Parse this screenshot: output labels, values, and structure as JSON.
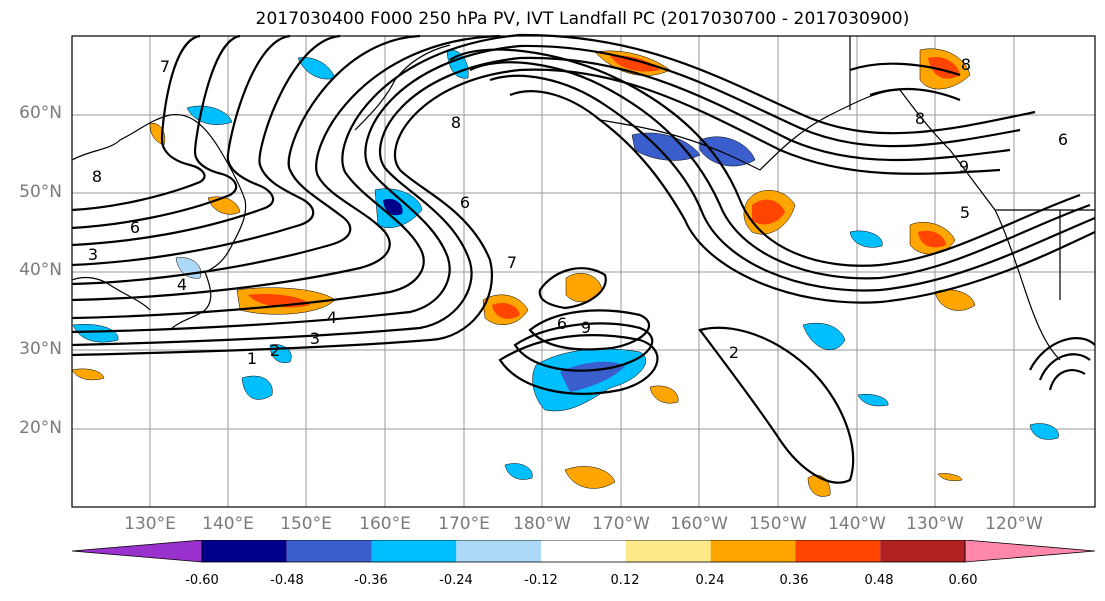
{
  "title": "2017030400 F000 250 hPa PV, IVT Landfall PC (2017030700 - 2017030900)",
  "map": {
    "lat_labels": [
      "60°N",
      "50°N",
      "40°N",
      "30°N",
      "20°N"
    ],
    "lon_labels": [
      "130°E",
      "140°E",
      "150°E",
      "160°E",
      "170°E",
      "180°W",
      "170°W",
      "160°W",
      "150°W",
      "140°W",
      "130°W",
      "120°W"
    ],
    "contour_labels": [
      "1",
      "2",
      "3",
      "4",
      "6",
      "8",
      "7",
      "2",
      "6",
      "8",
      "6",
      "9",
      "7",
      "6",
      "3",
      "4",
      "8",
      "8",
      "5",
      "9"
    ]
  },
  "colorbar": {
    "colors": [
      "#9932cc",
      "#00008b",
      "#3a5fcd",
      "#00bfff",
      "#add8f8",
      "#ffffff",
      "#fde98a",
      "#ffa500",
      "#ff4500",
      "#b22222",
      "#ff88aa"
    ],
    "labels": [
      "-0.60",
      "-0.48",
      "-0.36",
      "-0.24",
      "-0.12",
      "0.12",
      "0.24",
      "0.36",
      "0.48",
      "0.60"
    ]
  }
}
